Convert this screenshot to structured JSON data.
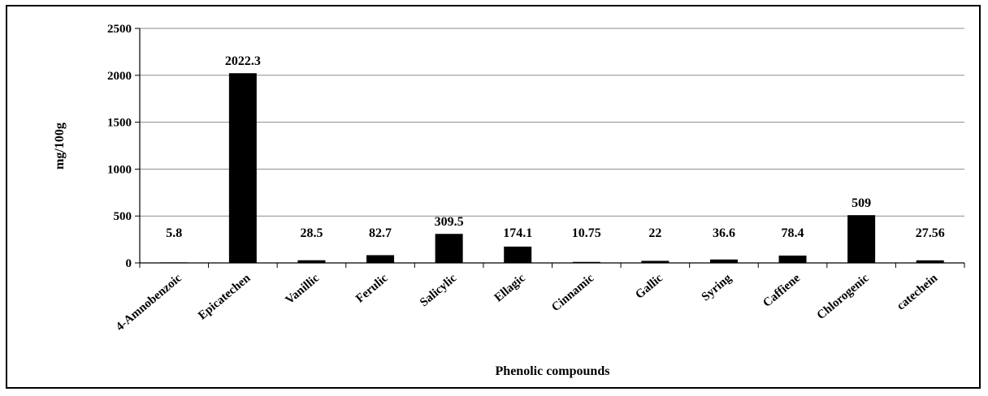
{
  "chart_data": {
    "type": "bar",
    "categories": [
      "4-Amnobenzoic",
      "Epicatechen",
      "Vanillic",
      "Ferulic",
      "Salicylic",
      "Ellagic",
      "Cinnamic",
      "Gallic",
      "Syring",
      "Caffiene",
      "Chlorogenic",
      "catechein"
    ],
    "values": [
      5.8,
      2022.3,
      28.5,
      82.7,
      309.5,
      174.1,
      10.75,
      22,
      36.6,
      78.4,
      509,
      27.56
    ],
    "data_labels": [
      "5.8",
      "2022.3",
      "28.5",
      "82.7",
      "309.5",
      "174.1",
      "10.75",
      "22",
      "36.6",
      "78.4",
      "509",
      "27.56"
    ],
    "xlabel": "Phenolic compounds",
    "ylabel": "mg/100g",
    "ylim": [
      0,
      2500
    ],
    "yticks": [
      "0",
      "500",
      "1000",
      "1500",
      "2000",
      "2500"
    ],
    "grid": true,
    "bar_color": "#000000",
    "grid_color": "#8c8c8c"
  }
}
